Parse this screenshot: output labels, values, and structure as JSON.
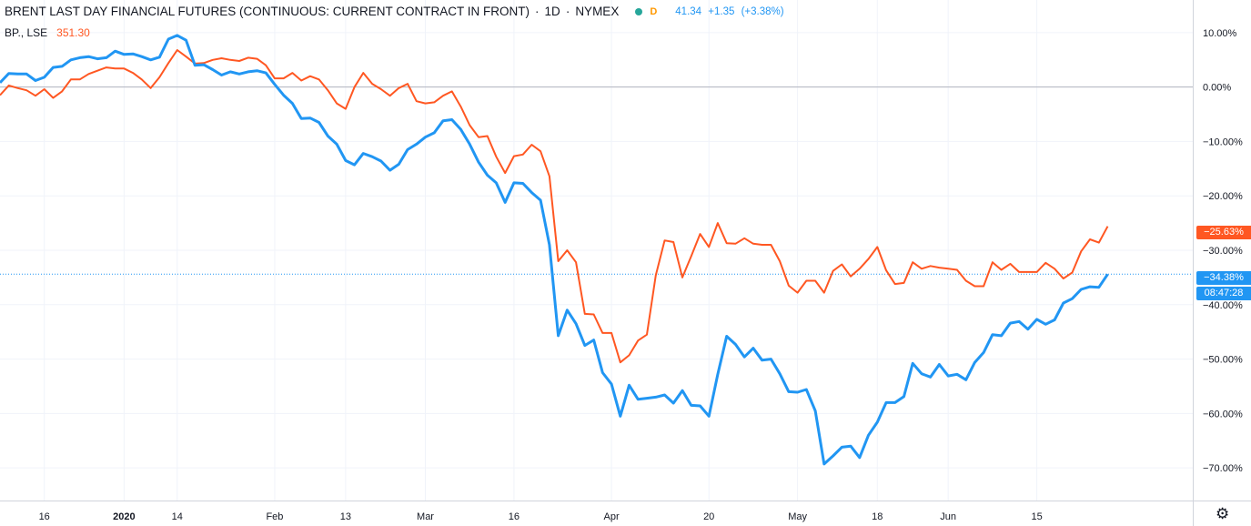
{
  "legend": {
    "title": "BRENT LAST DAY FINANCIAL FUTURES (CONTINUOUS: CURRENT CONTRACT IN FRONT)",
    "interval": "1D",
    "exchange": "NYMEX",
    "sep": "·",
    "status_dot_color": "#26a69a",
    "badge": "D",
    "badge_color": "#ff9800",
    "last": "41.34",
    "change": "+1.35",
    "change_pct": "(+3.38%)",
    "compare_symbol": "BP., LSE",
    "compare_last": "351.30"
  },
  "tags": {
    "bp_pct": "−25.63%",
    "brent_pct": "−34.38%",
    "countdown": "08:47:28"
  },
  "colors": {
    "brent": "#2196f3",
    "bp": "#ff5722",
    "grid": "#f0f3fa",
    "axis_text": "#131722",
    "zero_line": "#b2b5be",
    "pane_border": "#d1d4dc"
  },
  "icons": {
    "settings": "gear-icon"
  },
  "chart_data": {
    "type": "line",
    "title": "",
    "xlabel": "",
    "ylabel": "",
    "ylim": [
      -76,
      16
    ],
    "y_tick_values": [
      10,
      0,
      -10,
      -20,
      -30,
      -40,
      -50,
      -60,
      -70
    ],
    "y_tick_labels": [
      "10.00%",
      "0.00%",
      "−10.00%",
      "−20.00%",
      "−30.00%",
      "−40.00%",
      "−50.00%",
      "−60.00%",
      "−70.00%"
    ],
    "x_tick_labels": [
      "16",
      "2020",
      "14",
      "Feb",
      "13",
      "Mar",
      "16",
      "Apr",
      "20",
      "May",
      "18",
      "Jun",
      "15"
    ],
    "x_tick_index": [
      5,
      14,
      20,
      31,
      39,
      48,
      58,
      69,
      80,
      90,
      99,
      107,
      117
    ],
    "grid": true,
    "legend_position": "top-left",
    "series": [
      {
        "name": "BRENT LAST DAY FINANCIAL FUTURES (CONTINUOUS: CURRENT CONTRACT IN FRONT)",
        "values": [
          0.8,
          2.5,
          2.4,
          2.4,
          1.2,
          1.8,
          3.6,
          3.8,
          5.0,
          5.4,
          5.6,
          5.2,
          5.4,
          6.6,
          6.0,
          6.1,
          5.6,
          5.0,
          5.5,
          8.8,
          9.5,
          8.6,
          4.0,
          4.1,
          3.2,
          2.2,
          2.8,
          2.4,
          2.8,
          3.0,
          2.6,
          0.5,
          -1.5,
          -3.0,
          -5.8,
          -5.7,
          -6.5,
          -9.0,
          -10.5,
          -13.5,
          -14.3,
          -12.2,
          -12.8,
          -13.6,
          -15.3,
          -14.2,
          -11.5,
          -10.5,
          -9.2,
          -8.4,
          -6.2,
          -6.0,
          -7.8,
          -10.5,
          -13.8,
          -16.2,
          -17.6,
          -21.2,
          -17.6,
          -17.7,
          -19.4,
          -20.8,
          -29.0,
          -45.7,
          -41.0,
          -43.5,
          -47.5,
          -46.5,
          -52.5,
          -54.6,
          -60.5,
          -54.8,
          -57.4,
          -57.2,
          -57.0,
          -56.6,
          -58.1,
          -55.8,
          -58.5,
          -58.6,
          -60.5,
          -52.8,
          -45.8,
          -47.3,
          -49.6,
          -48.0,
          -50.2,
          -50.0,
          -52.7,
          -56.0,
          -56.1,
          -55.6,
          -59.5,
          -69.3,
          -67.8,
          -66.2,
          -66.0,
          -68.1,
          -64.0,
          -61.6,
          -58.0,
          -58.0,
          -56.9,
          -50.8,
          -52.7,
          -53.3,
          -51.0,
          -53.1,
          -52.8,
          -53.8,
          -50.6,
          -48.8,
          -45.5,
          -45.7,
          -43.4,
          -43.1,
          -44.5,
          -42.7,
          -43.6,
          -42.8,
          -39.7,
          -38.9,
          -37.2,
          -36.7,
          -36.8,
          -34.4
        ]
      },
      {
        "name": "BP., LSE",
        "values": [
          -1.5,
          0.3,
          -0.2,
          -0.6,
          -1.6,
          -0.4,
          -2.0,
          -0.8,
          1.4,
          1.4,
          2.4,
          3.0,
          3.6,
          3.4,
          3.4,
          2.6,
          1.4,
          -0.2,
          1.8,
          4.4,
          6.8,
          5.6,
          4.3,
          4.4,
          5.0,
          5.3,
          5.0,
          4.8,
          5.4,
          5.2,
          4.0,
          1.6,
          1.6,
          2.6,
          1.2,
          2.0,
          1.4,
          -0.6,
          -3.0,
          -4.0,
          0.0,
          2.6,
          0.6,
          -0.4,
          -1.6,
          -0.2,
          0.6,
          -2.6,
          -3.0,
          -2.8,
          -1.6,
          -0.8,
          -3.6,
          -7.0,
          -9.2,
          -9.0,
          -12.8,
          -15.8,
          -12.7,
          -12.4,
          -10.6,
          -11.8,
          -16.4,
          -32.0,
          -30.0,
          -32.2,
          -41.7,
          -41.8,
          -45.2,
          -45.2,
          -50.6,
          -49.3,
          -46.6,
          -45.5,
          -34.6,
          -28.2,
          -28.5,
          -35.0,
          -31.1,
          -27.0,
          -29.4,
          -25.0,
          -28.7,
          -28.8,
          -27.8,
          -28.8,
          -29.0,
          -29.0,
          -32.0,
          -36.5,
          -37.8,
          -35.6,
          -35.6,
          -37.8,
          -33.8,
          -32.6,
          -34.8,
          -33.4,
          -31.6,
          -29.4,
          -33.7,
          -36.2,
          -36.0,
          -32.2,
          -33.4,
          -32.9,
          -33.2,
          -33.4,
          -33.6,
          -35.6,
          -36.6,
          -36.6,
          -32.2,
          -33.6,
          -32.5,
          -34.0,
          -34.0,
          -34.0,
          -32.3,
          -33.4,
          -35.2,
          -34.1,
          -30.2,
          -28.0,
          -28.6,
          -25.6
        ]
      }
    ]
  }
}
